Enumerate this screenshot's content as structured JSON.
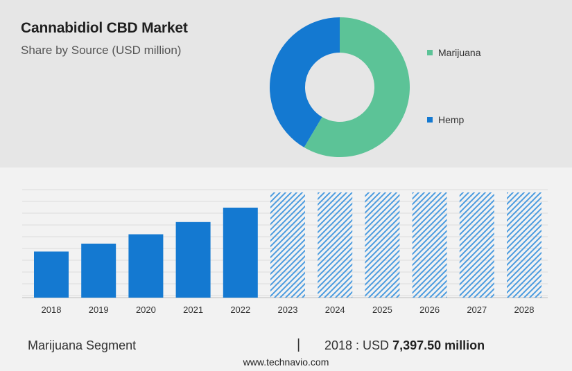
{
  "header": {
    "title": "Cannabidiol CBD Market",
    "subtitle": "Share by Source (USD million)"
  },
  "colors": {
    "marijuana": "#5cc397",
    "hemp": "#1479d1",
    "bar": "#1479d1",
    "forecast_hatch": "#4a9be0"
  },
  "chart_data": [
    {
      "type": "pie",
      "variant": "donut",
      "series": [
        {
          "name": "Marijuana",
          "value": 58.5
        },
        {
          "name": "Hemp",
          "value": 41.5
        }
      ],
      "legend_placement": "right"
    },
    {
      "type": "bar",
      "categories": [
        "2018",
        "2019",
        "2020",
        "2021",
        "2022",
        "2023",
        "2024",
        "2025",
        "2026",
        "2027",
        "2028"
      ],
      "values": [
        64,
        75,
        88,
        105,
        125,
        null,
        null,
        null,
        null,
        null,
        null
      ],
      "forecast_categories": [
        "2023",
        "2024",
        "2025",
        "2026",
        "2027",
        "2028"
      ],
      "ylim": [
        0,
        150
      ],
      "grid": true,
      "y_ticks_visible": false
    }
  ],
  "footer": {
    "segment_label": "Marijuana Segment",
    "divider": "|",
    "stat_prefix": "2018 : USD ",
    "stat_value": "7,397.50 million",
    "source": "www.technavio.com"
  }
}
